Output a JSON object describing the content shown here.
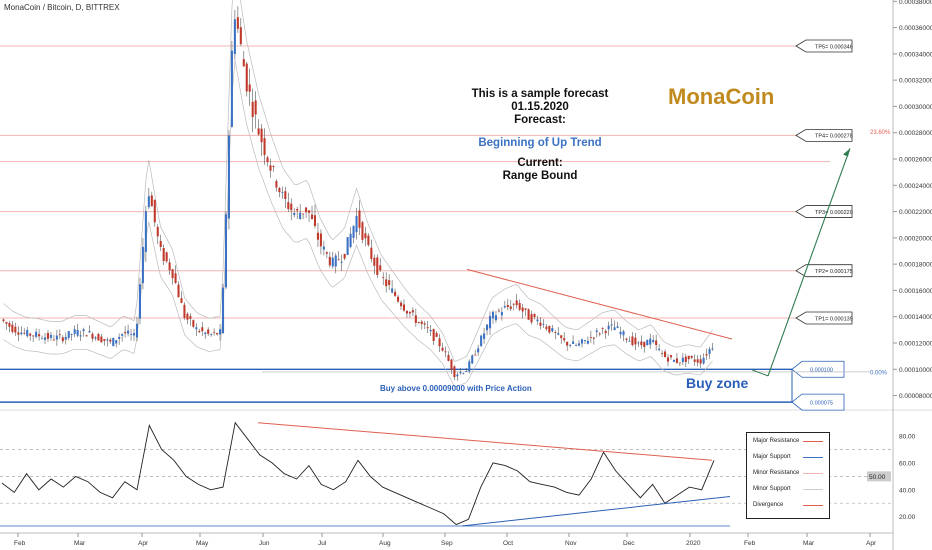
{
  "header": {
    "pair": "MonaCoin / Bitcoin, D, BITTREX"
  },
  "brand": {
    "name": "MonaCoin",
    "color": "#c08a1e"
  },
  "forecast": {
    "line1": "This is a sample forecast",
    "date": "01.15.2020",
    "forecast_label": "Forecast:",
    "forecast_value": "Beginning of Up Trend",
    "current_label": "Current:",
    "current_value": "Range Bound"
  },
  "buy_zone": {
    "label": "Buy zone",
    "note": "Buy above 0.00009000 with Price Action"
  },
  "legend": [
    {
      "label": "Major Resistance",
      "color": "#e06050"
    },
    {
      "label": "Major Support",
      "color": "#3b72c4"
    },
    {
      "label": "Minor Resistance",
      "color": "#f4b4b0"
    },
    {
      "label": "Minor Support",
      "color": "#cccccc"
    },
    {
      "label": "Divergence",
      "color": "#e06050"
    }
  ],
  "colors": {
    "bull": "#3b72c4",
    "bear": "#c0392b",
    "major_support": "#2a5fb8",
    "minor_resistance": "#f4b4b0",
    "target_arrow": "#2e7d4f",
    "fib_label": "#e06050",
    "fib_zero": "#3b72c4"
  },
  "chart_data": {
    "type": "candlestick",
    "x_axis": {
      "ticks": [
        "Feb",
        "Mar",
        "Apr",
        "May",
        "Jun",
        "Jul",
        "Aug",
        "Sep",
        "Oct",
        "Nov",
        "Dec",
        "2020",
        "Feb",
        "Mar",
        "Apr"
      ]
    },
    "price_axis": {
      "ylim": [
        6.9e-05,
        0.000381
      ],
      "ticks": [
        "0.00008000",
        "0.00010000",
        "0.00012000",
        "0.00014000",
        "0.00016000",
        "0.00018000",
        "0.00020000",
        "0.00022000",
        "0.00024000",
        "0.00026000",
        "0.00028000",
        "0.00030000",
        "0.00032000",
        "0.00034000",
        "0.00036000",
        "0.00038000"
      ],
      "tick_values": [
        8e-05,
        0.0001,
        0.00012,
        0.00014,
        0.00016,
        0.00018,
        0.0002,
        0.00022,
        0.00024,
        0.00026,
        0.00028,
        0.0003,
        0.00032,
        0.00034,
        0.00036,
        0.00038
      ]
    },
    "price_path": [
      [
        0,
        0.000138
      ],
      [
        1,
        0.000131
      ],
      [
        2,
        0.000127
      ],
      [
        3,
        0.000126
      ],
      [
        4,
        0.000124
      ],
      [
        5,
        0.000124
      ],
      [
        6,
        0.000128
      ],
      [
        7,
        0.000128
      ],
      [
        8,
        0.000124
      ],
      [
        9,
        0.00012
      ],
      [
        10,
        0.000128
      ],
      [
        11,
        0.000124
      ],
      [
        12,
        0.00024
      ],
      [
        13,
        0.00019
      ],
      [
        14,
        0.000174
      ],
      [
        15,
        0.00014
      ],
      [
        16,
        0.00013
      ],
      [
        17,
        0.000126
      ],
      [
        18,
        0.000128
      ],
      [
        19,
        0.000378
      ],
      [
        20,
        0.00032
      ],
      [
        21,
        0.000282
      ],
      [
        22,
        0.000254
      ],
      [
        23,
        0.00023
      ],
      [
        24,
        0.000218
      ],
      [
        25,
        0.000222
      ],
      [
        26,
        0.000196
      ],
      [
        27,
        0.00018
      ],
      [
        28,
        0.000188
      ],
      [
        29,
        0.000216
      ],
      [
        30,
        0.00019
      ],
      [
        31,
        0.00017
      ],
      [
        32,
        0.000158
      ],
      [
        33,
        0.000146
      ],
      [
        34,
        0.000136
      ],
      [
        35,
        0.000128
      ],
      [
        36,
        0.000116
      ],
      [
        37,
        9.6e-05
      ],
      [
        38,
        0.0001
      ],
      [
        39,
        0.00012
      ],
      [
        40,
        0.00014
      ],
      [
        41,
        0.000146
      ],
      [
        42,
        0.00015
      ],
      [
        43,
        0.00014
      ],
      [
        44,
        0.000136
      ],
      [
        45,
        0.000128
      ],
      [
        46,
        0.00012
      ],
      [
        47,
        0.000118
      ],
      [
        48,
        0.000124
      ],
      [
        49,
        0.00013
      ],
      [
        50,
        0.000132
      ],
      [
        51,
        0.000124
      ],
      [
        52,
        0.000118
      ],
      [
        53,
        0.000122
      ],
      [
        54,
        0.00011
      ],
      [
        55,
        0.000106
      ],
      [
        56,
        0.000108
      ],
      [
        57,
        0.000106
      ],
      [
        58,
        0.000118
      ]
    ],
    "horizontal_levels": [
      {
        "label": "TP5= 0.000346",
        "value": 0.000346,
        "kind": "target"
      },
      {
        "label": "TP4= 0.000278",
        "value": 0.000278,
        "kind": "target"
      },
      {
        "label": "TP3= 0.000220",
        "value": 0.00022,
        "kind": "target"
      },
      {
        "label": "TP2= 0.000175",
        "value": 0.000175,
        "kind": "target"
      },
      {
        "label": "TP1= 0.000139",
        "value": 0.000139,
        "kind": "target"
      },
      {
        "label": "0.000100",
        "value": 0.0001,
        "kind": "major_support"
      },
      {
        "label": "0.000075",
        "value": 7.5e-05,
        "kind": "major_support"
      }
    ],
    "extra_resistance_levels": [
      0.000258
    ],
    "fib_labels": [
      {
        "label": "23.60%",
        "value": 0.000281
      },
      {
        "label": "0.00%",
        "value": 9.8e-05
      }
    ],
    "trendline": {
      "from": [
        0.000176,
        0.00018
      ],
      "to": [
        0.000123,
        0.000114
      ]
    },
    "target_arrow": {
      "from": [
        9.8e-05,
        0.000102
      ],
      "to": [
        0.000268,
        0.000272
      ]
    },
    "oscillator": {
      "ylim": [
        10,
        95
      ],
      "ticks": [
        "20.00",
        "40.00",
        "60.00",
        "80.00"
      ],
      "tick_values": [
        20,
        40,
        60,
        80
      ],
      "current": "50.00",
      "current_value": 50,
      "dashed_levels": [
        30,
        50,
        70
      ],
      "resistance_line": {
        "from": 90,
        "to": 62
      },
      "support_line": {
        "from": 13,
        "to": 35
      },
      "flat_support": 13,
      "path": [
        [
          0,
          45
        ],
        [
          1,
          38
        ],
        [
          2,
          52
        ],
        [
          3,
          40
        ],
        [
          4,
          48
        ],
        [
          5,
          42
        ],
        [
          6,
          50
        ],
        [
          7,
          46
        ],
        [
          8,
          38
        ],
        [
          9,
          34
        ],
        [
          10,
          46
        ],
        [
          11,
          40
        ],
        [
          12,
          88
        ],
        [
          13,
          70
        ],
        [
          14,
          62
        ],
        [
          15,
          50
        ],
        [
          16,
          44
        ],
        [
          17,
          40
        ],
        [
          18,
          42
        ],
        [
          19,
          90
        ],
        [
          20,
          78
        ],
        [
          21,
          66
        ],
        [
          22,
          60
        ],
        [
          23,
          52
        ],
        [
          24,
          48
        ],
        [
          25,
          58
        ],
        [
          26,
          44
        ],
        [
          27,
          40
        ],
        [
          28,
          46
        ],
        [
          29,
          62
        ],
        [
          30,
          50
        ],
        [
          31,
          42
        ],
        [
          32,
          38
        ],
        [
          33,
          34
        ],
        [
          34,
          30
        ],
        [
          35,
          26
        ],
        [
          36,
          22
        ],
        [
          37,
          14
        ],
        [
          38,
          18
        ],
        [
          39,
          42
        ],
        [
          40,
          60
        ],
        [
          41,
          58
        ],
        [
          42,
          54
        ],
        [
          43,
          46
        ],
        [
          44,
          44
        ],
        [
          45,
          42
        ],
        [
          46,
          38
        ],
        [
          47,
          36
        ],
        [
          48,
          48
        ],
        [
          49,
          68
        ],
        [
          50,
          54
        ],
        [
          51,
          44
        ],
        [
          52,
          34
        ],
        [
          53,
          44
        ],
        [
          54,
          30
        ],
        [
          55,
          36
        ],
        [
          56,
          42
        ],
        [
          57,
          40
        ],
        [
          58,
          62
        ]
      ]
    }
  }
}
